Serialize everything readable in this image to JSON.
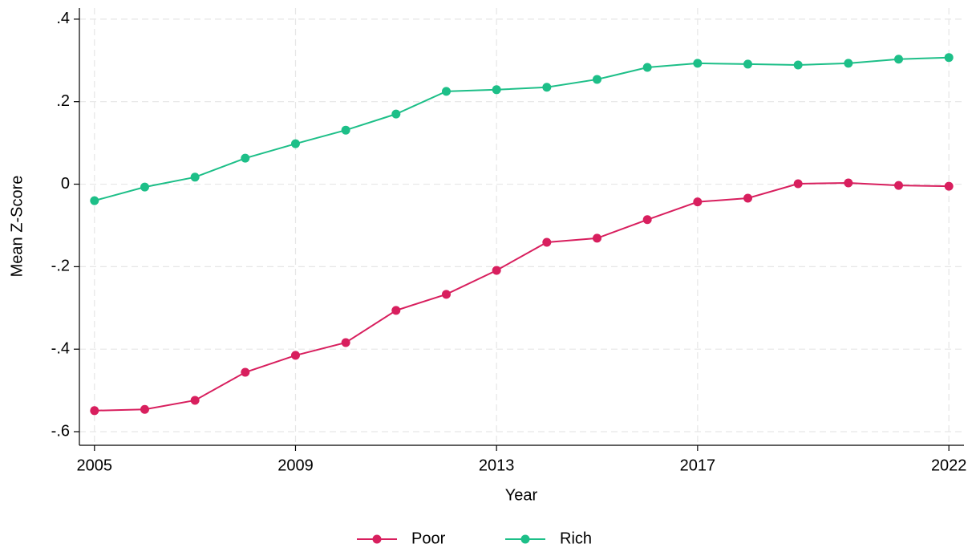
{
  "chart_data": {
    "type": "line",
    "x_label": "Year",
    "y_label": "Mean Z-Score",
    "x": [
      2005,
      2006,
      2007,
      2008,
      2009,
      2010,
      2011,
      2012,
      2013,
      2014,
      2015,
      2016,
      2017,
      2018,
      2019,
      2020,
      2021,
      2022
    ],
    "series": [
      {
        "name": "Poor",
        "color": "#d81f5e",
        "values": [
          -0.549,
          -0.546,
          -0.524,
          -0.456,
          -0.415,
          -0.384,
          -0.306,
          -0.267,
          -0.209,
          -0.141,
          -0.131,
          -0.086,
          -0.043,
          -0.034,
          0.001,
          0.003,
          -0.003,
          -0.005
        ]
      },
      {
        "name": "Rich",
        "color": "#1dbf88",
        "values": [
          -0.04,
          -0.007,
          0.017,
          0.063,
          0.098,
          0.131,
          0.17,
          0.225,
          0.229,
          0.235,
          0.254,
          0.283,
          0.293,
          0.291,
          0.289,
          0.293,
          0.303,
          0.307
        ]
      }
    ],
    "xlim": [
      2004.7,
      2022.3
    ],
    "xticks": [
      2005,
      2009,
      2013,
      2017,
      2022
    ],
    "ylim": [
      -0.633,
      0.427
    ],
    "yticks": [
      {
        "value": 0.4,
        "label": ".4"
      },
      {
        "value": 0.2,
        "label": ".2"
      },
      0,
      {
        "value": -0.2,
        "label": "-.2"
      },
      {
        "value": -0.4,
        "label": "-.4"
      },
      {
        "value": -0.6,
        "label": "-.6"
      }
    ],
    "grid": true,
    "legend": "bottom"
  }
}
